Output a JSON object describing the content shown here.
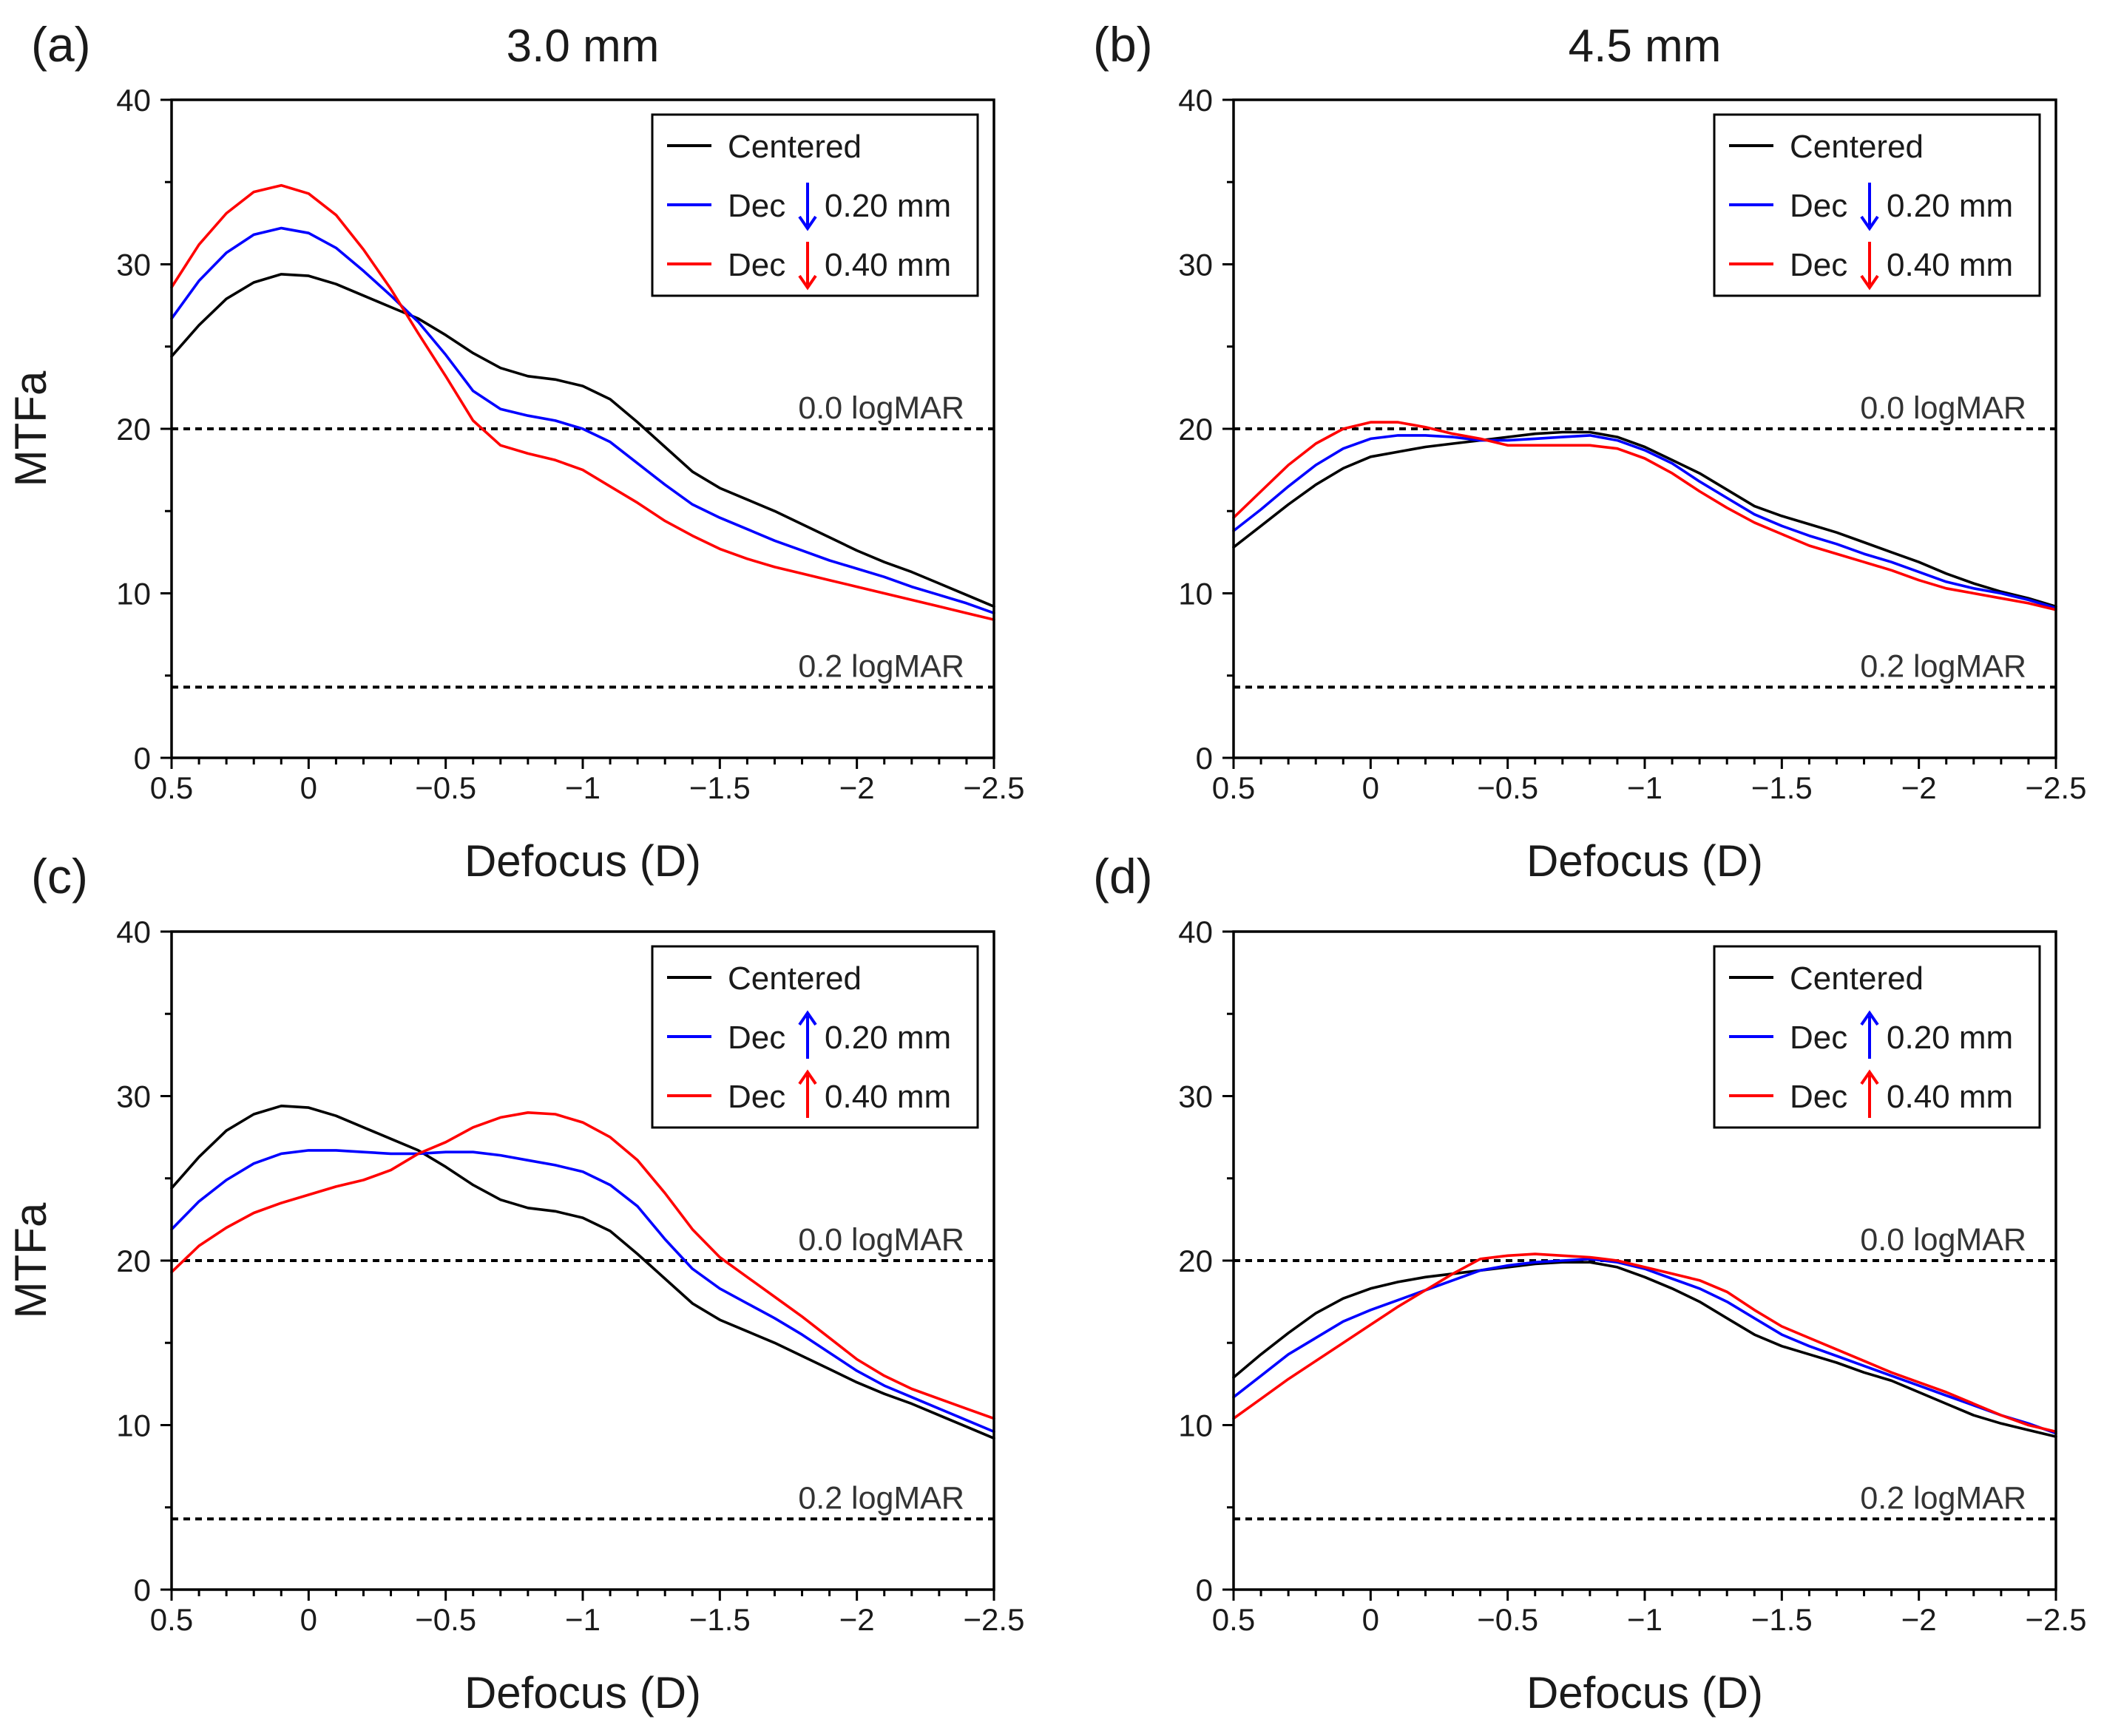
{
  "figure": {
    "colors": {
      "centered": "#000000",
      "dec020": "#0000ff",
      "dec040": "#ff0000",
      "axis": "#000000"
    }
  },
  "chart_data": [
    {
      "panel_label": "(a)",
      "title": "3.0 mm",
      "type": "line",
      "xlabel": "Defocus (D)",
      "ylabel": "MTFa",
      "xlim": [
        0.5,
        -2.5
      ],
      "ylim": [
        0,
        40
      ],
      "x_ticks": [
        0.5,
        0,
        -0.5,
        -1,
        -1.5,
        -2,
        -2.5
      ],
      "x_tick_labels": [
        "0.5",
        "0",
        "−0.5",
        "−1",
        "−1.5",
        "−2",
        "−2.5"
      ],
      "y_ticks": [
        0,
        10,
        20,
        30,
        40
      ],
      "y_tick_labels": [
        "0",
        "10",
        "20",
        "30",
        "40"
      ],
      "reference_lines": [
        {
          "y": 20,
          "label": "0.0 logMAR"
        },
        {
          "y": 4.3,
          "label": "0.2 logMAR"
        }
      ],
      "legend": {
        "position": "top-right",
        "arrow": "down"
      },
      "x": [
        0.5,
        0.4,
        0.3,
        0.2,
        0.1,
        0.0,
        -0.1,
        -0.2,
        -0.3,
        -0.4,
        -0.5,
        -0.6,
        -0.7,
        -0.8,
        -0.9,
        -1.0,
        -1.1,
        -1.2,
        -1.3,
        -1.4,
        -1.5,
        -1.6,
        -1.7,
        -1.8,
        -1.9,
        -2.0,
        -2.1,
        -2.2,
        -2.3,
        -2.4,
        -2.5
      ],
      "series": [
        {
          "name": "Centered",
          "color": "#000000",
          "legend_text": "Centered",
          "legend_value": "",
          "values": [
            24.4,
            26.3,
            27.9,
            28.9,
            29.4,
            29.3,
            28.8,
            28.1,
            27.4,
            26.7,
            25.7,
            24.6,
            23.7,
            23.2,
            23.0,
            22.6,
            21.8,
            20.4,
            18.9,
            17.4,
            16.4,
            15.7,
            15.0,
            14.2,
            13.4,
            12.6,
            11.9,
            11.3,
            10.6,
            9.9,
            9.2
          ]
        },
        {
          "name": "Dec 0.20 mm",
          "color": "#0000ff",
          "legend_text": "Dec",
          "legend_value": "0.20 mm",
          "values": [
            26.7,
            29.0,
            30.7,
            31.8,
            32.2,
            31.9,
            31.0,
            29.6,
            28.1,
            26.5,
            24.5,
            22.3,
            21.2,
            20.8,
            20.5,
            20.0,
            19.2,
            17.9,
            16.6,
            15.4,
            14.6,
            13.9,
            13.2,
            12.6,
            12.0,
            11.5,
            11.0,
            10.4,
            9.9,
            9.4,
            8.8
          ]
        },
        {
          "name": "Dec 0.40 mm",
          "color": "#ff0000",
          "legend_text": "Dec",
          "legend_value": "0.40 mm",
          "values": [
            28.6,
            31.2,
            33.1,
            34.4,
            34.8,
            34.3,
            33.0,
            30.9,
            28.5,
            25.8,
            23.2,
            20.5,
            19.0,
            18.5,
            18.1,
            17.5,
            16.5,
            15.5,
            14.4,
            13.5,
            12.7,
            12.1,
            11.6,
            11.2,
            10.8,
            10.4,
            10.0,
            9.6,
            9.2,
            8.8,
            8.4
          ]
        }
      ]
    },
    {
      "panel_label": "(b)",
      "title": "4.5 mm",
      "type": "line",
      "xlabel": "Defocus (D)",
      "ylabel": "",
      "xlim": [
        0.5,
        -2.5
      ],
      "ylim": [
        0,
        40
      ],
      "x_ticks": [
        0.5,
        0,
        -0.5,
        -1,
        -1.5,
        -2,
        -2.5
      ],
      "x_tick_labels": [
        "0.5",
        "0",
        "−0.5",
        "−1",
        "−1.5",
        "−2",
        "−2.5"
      ],
      "y_ticks": [
        0,
        10,
        20,
        30,
        40
      ],
      "y_tick_labels": [
        "0",
        "10",
        "20",
        "30",
        "40"
      ],
      "reference_lines": [
        {
          "y": 20,
          "label": "0.0 logMAR"
        },
        {
          "y": 4.3,
          "label": "0.2 logMAR"
        }
      ],
      "legend": {
        "position": "top-right",
        "arrow": "down"
      },
      "x": [
        0.5,
        0.4,
        0.3,
        0.2,
        0.1,
        0.0,
        -0.1,
        -0.2,
        -0.3,
        -0.4,
        -0.5,
        -0.6,
        -0.7,
        -0.8,
        -0.9,
        -1.0,
        -1.1,
        -1.2,
        -1.3,
        -1.4,
        -1.5,
        -1.6,
        -1.7,
        -1.8,
        -1.9,
        -2.0,
        -2.1,
        -2.2,
        -2.3,
        -2.4,
        -2.5
      ],
      "series": [
        {
          "name": "Centered",
          "color": "#000000",
          "legend_text": "Centered",
          "legend_value": "",
          "values": [
            12.8,
            14.1,
            15.4,
            16.6,
            17.6,
            18.3,
            18.6,
            18.9,
            19.1,
            19.3,
            19.5,
            19.7,
            19.8,
            19.8,
            19.5,
            18.9,
            18.1,
            17.3,
            16.3,
            15.3,
            14.7,
            14.2,
            13.7,
            13.1,
            12.5,
            11.9,
            11.2,
            10.6,
            10.1,
            9.7,
            9.2
          ]
        },
        {
          "name": "Dec 0.20 mm",
          "color": "#0000ff",
          "legend_text": "Dec",
          "legend_value": "0.20 mm",
          "values": [
            13.8,
            15.1,
            16.5,
            17.8,
            18.8,
            19.4,
            19.6,
            19.6,
            19.5,
            19.3,
            19.3,
            19.4,
            19.5,
            19.6,
            19.3,
            18.7,
            17.9,
            16.8,
            15.8,
            14.8,
            14.1,
            13.5,
            13.0,
            12.4,
            11.9,
            11.3,
            10.7,
            10.3,
            10.0,
            9.6,
            9.1
          ]
        },
        {
          "name": "Dec 0.40 mm",
          "color": "#ff0000",
          "legend_text": "Dec",
          "legend_value": "0.40 mm",
          "values": [
            14.6,
            16.2,
            17.8,
            19.1,
            20.0,
            20.4,
            20.4,
            20.1,
            19.7,
            19.4,
            19.0,
            19.0,
            19.0,
            19.0,
            18.8,
            18.2,
            17.3,
            16.2,
            15.2,
            14.3,
            13.6,
            12.9,
            12.4,
            11.9,
            11.4,
            10.8,
            10.3,
            10.0,
            9.7,
            9.4,
            9.0
          ]
        }
      ]
    },
    {
      "panel_label": "(c)",
      "title": "",
      "type": "line",
      "xlabel": "Defocus (D)",
      "ylabel": "MTFa",
      "xlim": [
        0.5,
        -2.5
      ],
      "ylim": [
        0,
        40
      ],
      "x_ticks": [
        0.5,
        0,
        -0.5,
        -1,
        -1.5,
        -2,
        -2.5
      ],
      "x_tick_labels": [
        "0.5",
        "0",
        "−0.5",
        "−1",
        "−1.5",
        "−2",
        "−2.5"
      ],
      "y_ticks": [
        0,
        10,
        20,
        30,
        40
      ],
      "y_tick_labels": [
        "0",
        "10",
        "20",
        "30",
        "40"
      ],
      "reference_lines": [
        {
          "y": 20,
          "label": "0.0 logMAR"
        },
        {
          "y": 4.3,
          "label": "0.2 logMAR"
        }
      ],
      "legend": {
        "position": "top-right",
        "arrow": "up"
      },
      "x": [
        0.5,
        0.4,
        0.3,
        0.2,
        0.1,
        0.0,
        -0.1,
        -0.2,
        -0.3,
        -0.4,
        -0.5,
        -0.6,
        -0.7,
        -0.8,
        -0.9,
        -1.0,
        -1.1,
        -1.2,
        -1.3,
        -1.4,
        -1.5,
        -1.6,
        -1.7,
        -1.8,
        -1.9,
        -2.0,
        -2.1,
        -2.2,
        -2.3,
        -2.4,
        -2.5
      ],
      "series": [
        {
          "name": "Centered",
          "color": "#000000",
          "legend_text": "Centered",
          "legend_value": "",
          "values": [
            24.4,
            26.3,
            27.9,
            28.9,
            29.4,
            29.3,
            28.8,
            28.1,
            27.4,
            26.7,
            25.7,
            24.6,
            23.7,
            23.2,
            23.0,
            22.6,
            21.8,
            20.4,
            18.9,
            17.4,
            16.4,
            15.7,
            15.0,
            14.2,
            13.4,
            12.6,
            11.9,
            11.3,
            10.6,
            9.9,
            9.2
          ]
        },
        {
          "name": "Dec 0.20 mm",
          "color": "#0000ff",
          "legend_text": "Dec",
          "legend_value": "0.20 mm",
          "values": [
            21.9,
            23.6,
            24.9,
            25.9,
            26.5,
            26.7,
            26.7,
            26.6,
            26.5,
            26.5,
            26.6,
            26.6,
            26.4,
            26.1,
            25.8,
            25.4,
            24.6,
            23.3,
            21.3,
            19.5,
            18.3,
            17.4,
            16.5,
            15.5,
            14.4,
            13.3,
            12.4,
            11.7,
            11.0,
            10.3,
            9.6
          ]
        },
        {
          "name": "Dec 0.40 mm",
          "color": "#ff0000",
          "legend_text": "Dec",
          "legend_value": "0.40 mm",
          "values": [
            19.3,
            20.9,
            22.0,
            22.9,
            23.5,
            24.0,
            24.5,
            24.9,
            25.5,
            26.5,
            27.2,
            28.1,
            28.7,
            29.0,
            28.9,
            28.4,
            27.5,
            26.1,
            24.1,
            21.9,
            20.2,
            19.0,
            17.8,
            16.6,
            15.3,
            14.0,
            13.0,
            12.2,
            11.6,
            11.0,
            10.4
          ]
        }
      ]
    },
    {
      "panel_label": "(d)",
      "title": "",
      "type": "line",
      "xlabel": "Defocus (D)",
      "ylabel": "",
      "xlim": [
        0.5,
        -2.5
      ],
      "ylim": [
        0,
        40
      ],
      "x_ticks": [
        0.5,
        0,
        -0.5,
        -1,
        -1.5,
        -2,
        -2.5
      ],
      "x_tick_labels": [
        "0.5",
        "0",
        "−0.5",
        "−1",
        "−1.5",
        "−2",
        "−2.5"
      ],
      "y_ticks": [
        0,
        10,
        20,
        30,
        40
      ],
      "y_tick_labels": [
        "0",
        "10",
        "20",
        "30",
        "40"
      ],
      "reference_lines": [
        {
          "y": 20,
          "label": "0.0 logMAR"
        },
        {
          "y": 4.3,
          "label": "0.2 logMAR"
        }
      ],
      "legend": {
        "position": "top-right",
        "arrow": "up"
      },
      "x": [
        0.5,
        0.4,
        0.3,
        0.2,
        0.1,
        0.0,
        -0.1,
        -0.2,
        -0.3,
        -0.4,
        -0.5,
        -0.6,
        -0.7,
        -0.8,
        -0.9,
        -1.0,
        -1.1,
        -1.2,
        -1.3,
        -1.4,
        -1.5,
        -1.6,
        -1.7,
        -1.8,
        -1.9,
        -2.0,
        -2.1,
        -2.2,
        -2.3,
        -2.4,
        -2.5
      ],
      "series": [
        {
          "name": "Centered",
          "color": "#000000",
          "legend_text": "Centered",
          "legend_value": "",
          "values": [
            12.9,
            14.3,
            15.6,
            16.8,
            17.7,
            18.3,
            18.7,
            19.0,
            19.2,
            19.4,
            19.6,
            19.8,
            19.9,
            19.9,
            19.6,
            19.0,
            18.3,
            17.5,
            16.5,
            15.5,
            14.8,
            14.3,
            13.8,
            13.2,
            12.7,
            12.0,
            11.3,
            10.6,
            10.1,
            9.7,
            9.3
          ]
        },
        {
          "name": "Dec 0.20 mm",
          "color": "#0000ff",
          "legend_text": "Dec",
          "legend_value": "0.20 mm",
          "values": [
            11.7,
            13.0,
            14.3,
            15.3,
            16.3,
            17.0,
            17.6,
            18.2,
            18.8,
            19.4,
            19.7,
            19.9,
            20.0,
            20.1,
            19.9,
            19.5,
            18.9,
            18.3,
            17.5,
            16.5,
            15.5,
            14.8,
            14.2,
            13.6,
            13.0,
            12.4,
            11.8,
            11.2,
            10.6,
            10.1,
            9.5
          ]
        },
        {
          "name": "Dec 0.40 mm",
          "color": "#ff0000",
          "legend_text": "Dec",
          "legend_value": "0.40 mm",
          "values": [
            10.4,
            11.6,
            12.8,
            13.9,
            15.0,
            16.1,
            17.2,
            18.2,
            19.2,
            20.1,
            20.3,
            20.4,
            20.3,
            20.2,
            20.0,
            19.6,
            19.2,
            18.8,
            18.1,
            17.0,
            16.0,
            15.3,
            14.6,
            13.9,
            13.2,
            12.6,
            12.0,
            11.3,
            10.6,
            10.0,
            9.6
          ]
        }
      ]
    }
  ]
}
